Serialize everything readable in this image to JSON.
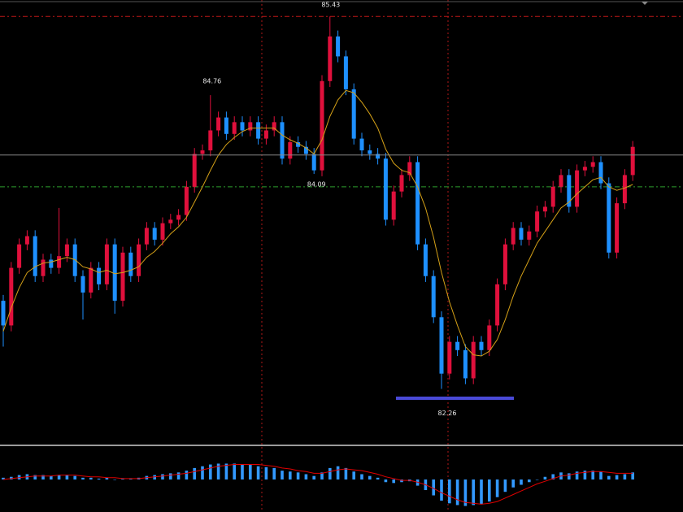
{
  "chart_data": [
    {
      "type": "candlestick",
      "up_color": "#e0103c",
      "down_color": "#1e90ff",
      "ma_color": "#d4a017",
      "hline_color": "#2e9e2e",
      "ylim": [
        81.8,
        85.57
      ],
      "hline": 83.98,
      "open": [
        83.01,
        82.8,
        83.29,
        83.49,
        83.56,
        83.22,
        83.36,
        83.29,
        83.39,
        83.49,
        83.22,
        83.08,
        83.29,
        83.15,
        83.49,
        83.01,
        83.42,
        83.22,
        83.49,
        83.63,
        83.53,
        83.67,
        83.7,
        83.74,
        83.98,
        84.26,
        84.29,
        84.46,
        84.57,
        84.43,
        84.53,
        84.46,
        84.53,
        84.39,
        84.46,
        84.53,
        84.22,
        84.36,
        84.32,
        84.26,
        84.12,
        84.88,
        85.26,
        85.09,
        84.81,
        84.39,
        84.29,
        84.26,
        84.22,
        83.7,
        83.94,
        84.08,
        84.19,
        83.49,
        83.22,
        82.87,
        82.39,
        82.66,
        82.59,
        82.35,
        82.66,
        82.59,
        82.8,
        83.15,
        83.49,
        83.63,
        83.53,
        83.6,
        83.77,
        83.81,
        83.98,
        84.08,
        83.81,
        84.12,
        84.15,
        84.19,
        84.01,
        83.42,
        83.84,
        84.08
      ],
      "high": [
        83.06,
        83.34,
        83.54,
        83.61,
        83.61,
        83.41,
        83.41,
        83.8,
        83.54,
        83.54,
        83.27,
        83.34,
        83.34,
        83.54,
        83.54,
        83.47,
        83.47,
        83.54,
        83.68,
        83.68,
        83.72,
        83.75,
        83.79,
        84.03,
        84.31,
        84.34,
        84.76,
        84.62,
        84.62,
        84.58,
        84.58,
        84.58,
        84.58,
        84.51,
        84.58,
        84.58,
        84.41,
        84.41,
        84.37,
        84.31,
        84.93,
        85.43,
        85.31,
        85.14,
        84.86,
        84.44,
        84.34,
        84.31,
        84.27,
        83.99,
        84.13,
        84.24,
        84.24,
        83.54,
        83.27,
        82.92,
        82.71,
        82.71,
        82.64,
        82.71,
        82.71,
        82.85,
        83.2,
        83.54,
        83.68,
        83.68,
        83.65,
        83.82,
        83.86,
        84.03,
        84.13,
        84.13,
        84.17,
        84.2,
        84.24,
        84.24,
        84.06,
        83.89,
        84.13,
        84.37
      ],
      "low": [
        82.62,
        82.75,
        83.24,
        83.44,
        83.17,
        83.17,
        83.24,
        83.24,
        83.34,
        83.17,
        82.85,
        83.03,
        83.1,
        83.1,
        82.9,
        82.96,
        83.17,
        83.17,
        83.44,
        83.48,
        83.48,
        83.62,
        83.65,
        83.69,
        83.93,
        84.21,
        84.24,
        84.41,
        84.38,
        84.38,
        84.41,
        84.41,
        84.34,
        84.34,
        84.41,
        84.17,
        84.17,
        84.27,
        84.21,
        84.09,
        84.07,
        84.83,
        85.04,
        84.76,
        84.34,
        84.24,
        84.21,
        84.17,
        83.65,
        83.65,
        83.89,
        84.03,
        83.44,
        83.17,
        82.82,
        82.26,
        82.34,
        82.54,
        82.3,
        82.3,
        82.54,
        82.54,
        82.75,
        83.1,
        83.44,
        83.48,
        83.48,
        83.55,
        83.72,
        83.76,
        83.93,
        83.76,
        83.76,
        84.07,
        84.1,
        83.96,
        83.37,
        83.37,
        83.79,
        84.03
      ],
      "close": [
        82.8,
        83.29,
        83.49,
        83.56,
        83.22,
        83.36,
        83.29,
        83.39,
        83.49,
        83.22,
        83.08,
        83.29,
        83.15,
        83.49,
        83.01,
        83.42,
        83.22,
        83.49,
        83.63,
        83.53,
        83.67,
        83.7,
        83.74,
        83.98,
        84.26,
        84.29,
        84.46,
        84.57,
        84.43,
        84.53,
        84.46,
        84.53,
        84.39,
        84.46,
        84.53,
        84.22,
        84.36,
        84.32,
        84.26,
        84.12,
        84.88,
        85.26,
        85.09,
        84.81,
        84.39,
        84.29,
        84.26,
        84.22,
        83.7,
        83.94,
        84.08,
        84.19,
        83.49,
        83.22,
        82.87,
        82.39,
        82.66,
        82.59,
        82.35,
        82.66,
        82.59,
        82.8,
        83.15,
        83.49,
        83.63,
        83.53,
        83.6,
        83.77,
        83.81,
        83.98,
        84.08,
        83.81,
        84.12,
        84.15,
        84.19,
        84.01,
        83.42,
        83.84,
        84.08,
        84.32
      ],
      "ma": [
        82.75,
        82.95,
        83.12,
        83.25,
        83.3,
        83.33,
        83.34,
        83.36,
        83.38,
        83.36,
        83.3,
        83.28,
        83.25,
        83.27,
        83.24,
        83.25,
        83.27,
        83.3,
        83.38,
        83.43,
        83.5,
        83.58,
        83.64,
        83.72,
        83.85,
        83.98,
        84.12,
        84.25,
        84.34,
        84.4,
        84.45,
        84.48,
        84.48,
        84.48,
        84.48,
        84.42,
        84.38,
        84.35,
        84.31,
        84.26,
        84.38,
        84.58,
        84.72,
        84.8,
        84.78,
        84.7,
        84.6,
        84.48,
        84.3,
        84.18,
        84.12,
        84.1,
        83.98,
        83.8,
        83.55,
        83.25,
        83.0,
        82.8,
        82.62,
        82.55,
        82.54,
        82.58,
        82.68,
        82.85,
        83.05,
        83.22,
        83.36,
        83.5,
        83.6,
        83.7,
        83.8,
        83.85,
        83.92,
        83.98,
        84.04,
        84.06,
        83.98,
        83.95,
        83.97,
        84.0
      ]
    },
    {
      "type": "bar",
      "ylim": [
        -0.35,
        0.35
      ],
      "series": [
        {
          "color": "#3399ff",
          "values": [
            0.02,
            0.03,
            0.05,
            0.06,
            0.05,
            0.05,
            0.04,
            0.05,
            0.05,
            0.04,
            0.02,
            0.02,
            0.01,
            0.02,
            0.0,
            0.01,
            0.01,
            0.02,
            0.04,
            0.05,
            0.06,
            0.07,
            0.08,
            0.1,
            0.13,
            0.15,
            0.17,
            0.18,
            0.18,
            0.18,
            0.17,
            0.17,
            0.15,
            0.14,
            0.13,
            0.1,
            0.09,
            0.08,
            0.06,
            0.04,
            0.08,
            0.13,
            0.15,
            0.13,
            0.09,
            0.06,
            0.04,
            0.02,
            -0.03,
            -0.04,
            -0.03,
            -0.02,
            -0.07,
            -0.12,
            -0.18,
            -0.24,
            -0.27,
            -0.29,
            -0.3,
            -0.29,
            -0.28,
            -0.25,
            -0.2,
            -0.14,
            -0.09,
            -0.06,
            -0.03,
            0.0,
            0.03,
            0.06,
            0.08,
            0.07,
            0.09,
            0.1,
            0.1,
            0.09,
            0.04,
            0.05,
            0.06,
            0.08
          ]
        },
        {
          "color": "#e00000",
          "values": [
            0.0,
            0.01,
            0.02,
            0.03,
            0.04,
            0.04,
            0.04,
            0.05,
            0.05,
            0.05,
            0.04,
            0.03,
            0.03,
            0.02,
            0.02,
            0.01,
            0.01,
            0.01,
            0.02,
            0.03,
            0.04,
            0.05,
            0.06,
            0.07,
            0.09,
            0.11,
            0.13,
            0.15,
            0.16,
            0.17,
            0.17,
            0.17,
            0.17,
            0.16,
            0.15,
            0.13,
            0.12,
            0.1,
            0.09,
            0.07,
            0.07,
            0.09,
            0.11,
            0.12,
            0.11,
            0.1,
            0.08,
            0.06,
            0.03,
            0.01,
            -0.01,
            -0.01,
            -0.03,
            -0.06,
            -0.1,
            -0.15,
            -0.19,
            -0.23,
            -0.26,
            -0.27,
            -0.28,
            -0.27,
            -0.25,
            -0.21,
            -0.17,
            -0.13,
            -0.09,
            -0.05,
            -0.02,
            0.01,
            0.04,
            0.05,
            0.07,
            0.08,
            0.09,
            0.09,
            0.08,
            0.07,
            0.07,
            0.07
          ]
        }
      ]
    }
  ]
}
